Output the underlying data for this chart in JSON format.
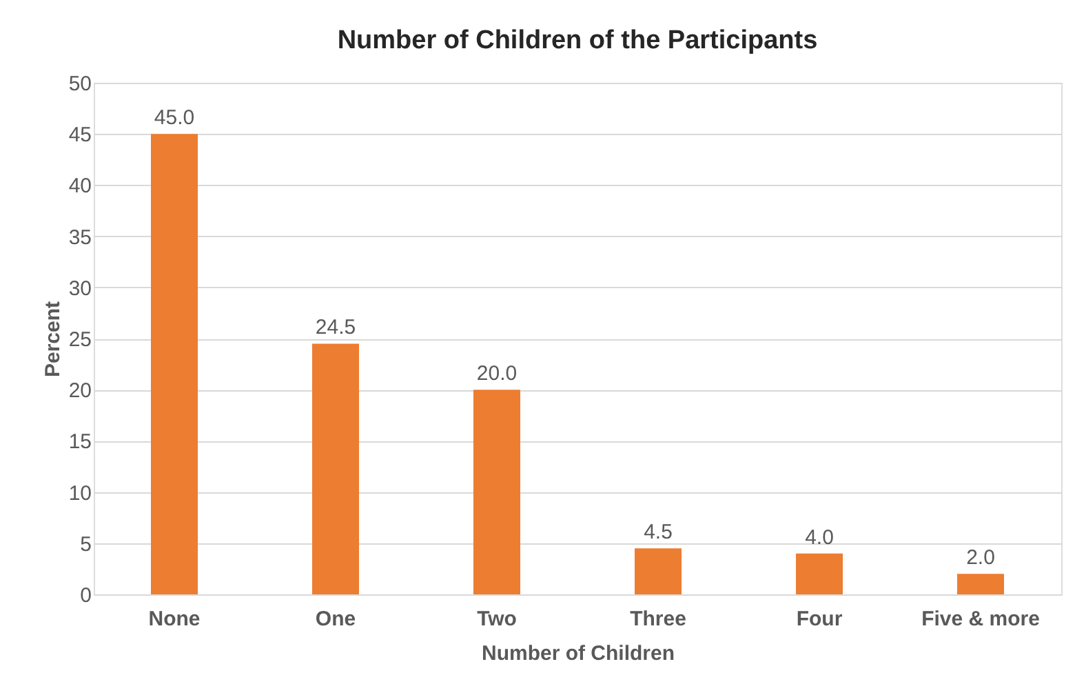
{
  "chart_data": {
    "type": "bar",
    "title": "Number of Children  of the Participants",
    "xlabel": "Number of Children",
    "ylabel": "Percent",
    "categories": [
      "None",
      "One",
      "Two",
      "Three",
      "Four",
      "Five & more"
    ],
    "values": [
      45.0,
      24.5,
      20.0,
      4.5,
      4.0,
      2.0
    ],
    "value_labels": [
      "45.0",
      "24.5",
      "20.0",
      "4.5",
      "4.0",
      "2.0"
    ],
    "color": "#ed7d31",
    "ylim": [
      0,
      50
    ],
    "yticks": [
      0,
      5,
      10,
      15,
      20,
      25,
      30,
      35,
      40,
      45,
      50
    ],
    "grid": "y"
  }
}
